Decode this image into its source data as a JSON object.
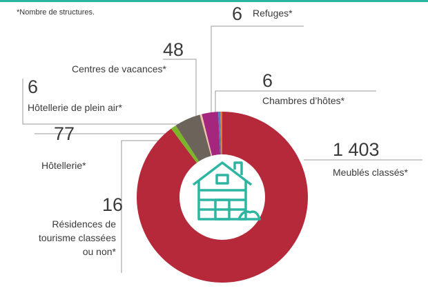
{
  "note": "*Nombre de structures.",
  "chart_data": {
    "type": "donut",
    "categories": [
      "Meublés classés*",
      "Résidences de tourisme classées ou non*",
      "Hôtellerie*",
      "Hôtellerie de plein air*",
      "Centres de vacances*",
      "Refuges*",
      "Chambres d’hôtes*"
    ],
    "values": [
      1403,
      16,
      77,
      6,
      48,
      6,
      6
    ],
    "value_labels": [
      "1 403",
      "16",
      "77",
      "6",
      "48",
      "6",
      "6"
    ],
    "colors": [
      "#b5293b",
      "#7bb62a",
      "#6c635b",
      "#ecc3a6",
      "#a4267f",
      "#4c80c2",
      "#e27b2b"
    ]
  }
}
